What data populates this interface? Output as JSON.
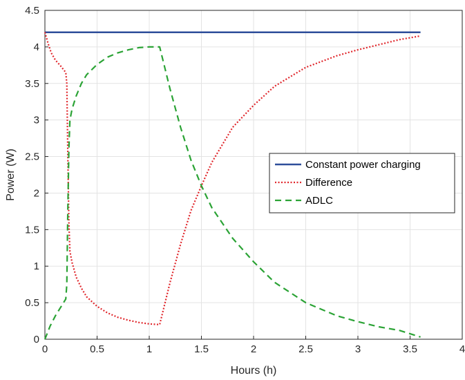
{
  "chart_data": {
    "type": "line",
    "xlabel": "Hours (h)",
    "ylabel": "Power (W)",
    "xlim": [
      0,
      4
    ],
    "ylim": [
      0,
      4.5
    ],
    "xticks": [
      0,
      0.5,
      1,
      1.5,
      2,
      2.5,
      3,
      3.5,
      4
    ],
    "yticks": [
      0,
      0.5,
      1,
      1.5,
      2,
      2.5,
      3,
      3.5,
      4,
      4.5
    ],
    "grid": true,
    "legend_position": "right",
    "series": [
      {
        "name": "Constant power charging",
        "color": "#2e4e9a",
        "style": "solid",
        "x": [
          0,
          3.6
        ],
        "y": [
          4.2,
          4.2
        ]
      },
      {
        "name": "Difference",
        "color": "#e0262b",
        "style": "dotted",
        "x": [
          0,
          0.03,
          0.06,
          0.1,
          0.15,
          0.2,
          0.21,
          0.22,
          0.23,
          0.24,
          0.26,
          0.3,
          0.35,
          0.4,
          0.5,
          0.6,
          0.7,
          0.8,
          0.9,
          1.0,
          1.1,
          1.2,
          1.3,
          1.4,
          1.5,
          1.6,
          1.8,
          2.0,
          2.2,
          2.5,
          2.8,
          3.0,
          3.2,
          3.4,
          3.6
        ],
        "y": [
          4.2,
          4.05,
          3.92,
          3.82,
          3.74,
          3.65,
          3.5,
          2.5,
          1.6,
          1.2,
          1.05,
          0.85,
          0.7,
          0.58,
          0.45,
          0.36,
          0.3,
          0.26,
          0.23,
          0.21,
          0.2,
          0.78,
          1.3,
          1.76,
          2.1,
          2.42,
          2.9,
          3.2,
          3.46,
          3.72,
          3.88,
          3.96,
          4.03,
          4.1,
          4.15
        ]
      },
      {
        "name": "ADLC",
        "color": "#2ba335",
        "style": "dashed",
        "x": [
          0,
          0.05,
          0.1,
          0.2,
          0.21,
          0.22,
          0.23,
          0.24,
          0.26,
          0.3,
          0.35,
          0.4,
          0.5,
          0.6,
          0.7,
          0.8,
          0.9,
          1.0,
          1.1,
          1.2,
          1.3,
          1.4,
          1.5,
          1.6,
          1.8,
          2.0,
          2.2,
          2.5,
          2.8,
          3.0,
          3.2,
          3.4,
          3.6
        ],
        "y": [
          0,
          0.18,
          0.32,
          0.55,
          0.75,
          1.8,
          2.6,
          3.0,
          3.15,
          3.33,
          3.5,
          3.62,
          3.76,
          3.86,
          3.92,
          3.96,
          3.99,
          4.0,
          4.0,
          3.42,
          2.9,
          2.45,
          2.1,
          1.8,
          1.38,
          1.06,
          0.78,
          0.5,
          0.32,
          0.24,
          0.17,
          0.12,
          0.03
        ]
      }
    ]
  }
}
